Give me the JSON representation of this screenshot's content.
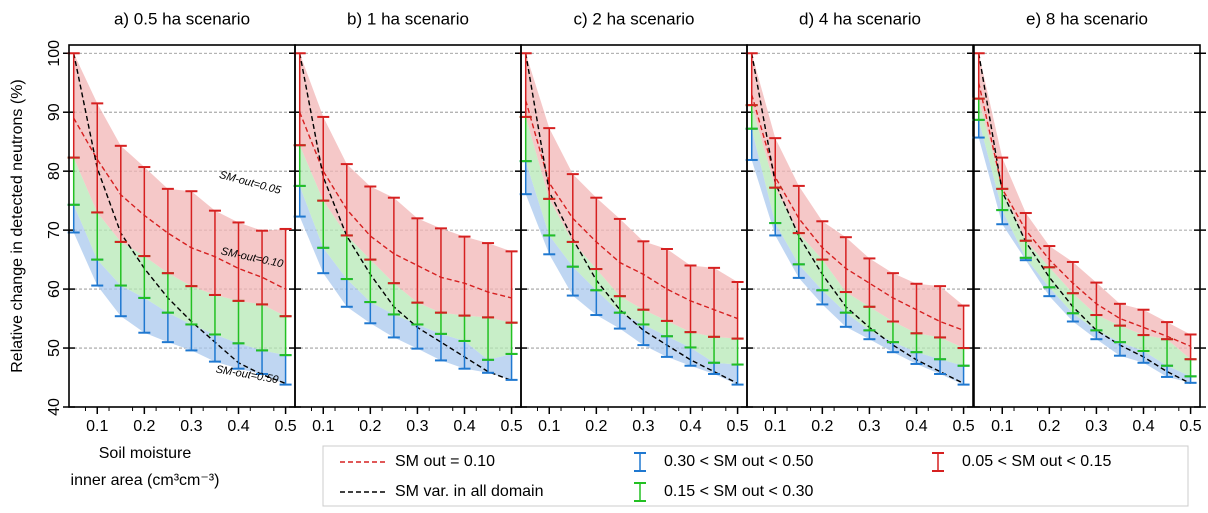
{
  "chart_data": [
    {
      "type": "line",
      "title": "a) 0.5 ha scenario",
      "ylabel": "Relative change in detected neutrons (%)",
      "xlabel": [
        "Soil moisture",
        "inner area (cm³cm⁻³)"
      ],
      "annotations": [
        "SM-out=0.05",
        "SM-out=0.10",
        "SM-out=0.50"
      ],
      "x": [
        0.05,
        0.1,
        0.15,
        0.2,
        0.25,
        0.3,
        0.35,
        0.4,
        0.45,
        0.5
      ],
      "xlim": [
        0.04,
        0.52
      ],
      "xticks": [
        0.1,
        0.2,
        0.3,
        0.4,
        0.5
      ],
      "ylim": [
        40,
        101.4
      ],
      "yticks": [
        40,
        50,
        60,
        70,
        80,
        90,
        100
      ],
      "grid": true,
      "series": [
        {
          "name": "SM out = 0.10",
          "color": "#d62020",
          "values": [
            89,
            82,
            76,
            72.5,
            69.5,
            67,
            65.5,
            63.5,
            62,
            60
          ]
        },
        {
          "name": "SM var. in all domain",
          "color": "#000000",
          "values": [
            100,
            80.5,
            69.5,
            63.5,
            58.5,
            54.5,
            51,
            47.5,
            45.5,
            44
          ]
        }
      ],
      "bands": [
        {
          "name": "0.30 < SM out < 0.50",
          "color": "#1f78d0",
          "fill": "#a9c8ee",
          "low": [
            69.6,
            60.6,
            55.4,
            52.6,
            51,
            49.6,
            47.7,
            46.5,
            45.6,
            43.8
          ],
          "high": [
            74.3,
            65,
            60.6,
            58.5,
            56,
            54,
            52.3,
            50.8,
            49.6,
            48.8
          ]
        },
        {
          "name": "0.15 < SM out < 0.30",
          "color": "#22c022",
          "fill": "#b5e8b5",
          "low": [
            74.3,
            65,
            60.6,
            58.5,
            56,
            54,
            52.3,
            50.8,
            49.6,
            48.8
          ],
          "high": [
            82.3,
            73,
            68,
            65.6,
            62.7,
            60.5,
            59,
            58,
            57.4,
            55.4
          ]
        },
        {
          "name": "0.05 < SM out < 0.15",
          "color": "#d62020",
          "fill": "#f2b5b5",
          "low": [
            82.3,
            73,
            68,
            65.6,
            62.7,
            60.5,
            59,
            58,
            57.4,
            55.4
          ],
          "high": [
            100,
            91.5,
            84.3,
            80.7,
            77,
            76.6,
            73.3,
            71.3,
            69.9,
            70.2
          ]
        }
      ]
    },
    {
      "type": "line",
      "title": "b) 1 ha scenario",
      "x": [
        0.05,
        0.1,
        0.15,
        0.2,
        0.25,
        0.3,
        0.35,
        0.4,
        0.45,
        0.5
      ],
      "xlim": [
        0.04,
        0.52
      ],
      "xticks": [
        0.1,
        0.2,
        0.3,
        0.4,
        0.5
      ],
      "ylim": [
        40,
        101.4
      ],
      "yticks": [
        40,
        50,
        60,
        70,
        80,
        90,
        100
      ],
      "grid": true,
      "series": [
        {
          "name": "SM out = 0.10",
          "color": "#d62020",
          "values": [
            90,
            80,
            73.5,
            69,
            66,
            64,
            62,
            61,
            59.5,
            58.5
          ]
        },
        {
          "name": "SM var. in all domain",
          "color": "#000000",
          "values": [
            100,
            79,
            69,
            62.5,
            57,
            53.5,
            51,
            48.5,
            46,
            44.5
          ]
        }
      ],
      "bands": [
        {
          "name": "0.30 < SM out < 0.50",
          "color": "#1f78d0",
          "fill": "#a9c8ee",
          "low": [
            72.3,
            62.7,
            57,
            54.2,
            51.8,
            49.9,
            47.9,
            46.5,
            45.8,
            44.6
          ],
          "high": [
            77.5,
            67,
            61.7,
            57.8,
            55.7,
            54,
            52.4,
            51.2,
            48,
            49
          ]
        },
        {
          "name": "0.15 < SM out < 0.30",
          "color": "#22c022",
          "fill": "#b5e8b5",
          "low": [
            77.5,
            67,
            61.7,
            57.8,
            55.7,
            54,
            52.4,
            51.2,
            48,
            49
          ],
          "high": [
            84.4,
            75,
            69.1,
            65,
            61,
            57.7,
            56,
            55.5,
            55.2,
            54.3
          ]
        },
        {
          "name": "0.05 < SM out < 0.15",
          "color": "#d62020",
          "fill": "#f2b5b5",
          "low": [
            84.4,
            75,
            69.1,
            65,
            61,
            57.7,
            56,
            55.5,
            55.2,
            54.3
          ],
          "high": [
            100,
            89.2,
            81.2,
            77.4,
            75.5,
            72,
            70.3,
            68.9,
            67.8,
            66.4
          ]
        }
      ]
    },
    {
      "type": "line",
      "title": "c) 2 ha scenario",
      "x": [
        0.05,
        0.1,
        0.15,
        0.2,
        0.25,
        0.3,
        0.35,
        0.4,
        0.45,
        0.5
      ],
      "xlim": [
        0.04,
        0.52
      ],
      "xticks": [
        0.1,
        0.2,
        0.3,
        0.4,
        0.5
      ],
      "ylim": [
        40,
        101.4
      ],
      "yticks": [
        40,
        50,
        60,
        70,
        80,
        90,
        100
      ],
      "grid": true,
      "series": [
        {
          "name": "SM out = 0.10",
          "color": "#d62020",
          "values": [
            92,
            78,
            72,
            68,
            64.5,
            62.5,
            60,
            58,
            56.5,
            55
          ]
        },
        {
          "name": "SM var. in all domain",
          "color": "#000000",
          "values": [
            100,
            76.5,
            68.5,
            61.5,
            56.5,
            53,
            50.5,
            48,
            46,
            44
          ]
        }
      ],
      "bands": [
        {
          "name": "0.30 < SM out < 0.50",
          "color": "#1f78d0",
          "fill": "#a9c8ee",
          "low": [
            76.1,
            65.9,
            58.9,
            55.6,
            53.3,
            50.5,
            48.5,
            47,
            45.6,
            43.8
          ],
          "high": [
            81.7,
            69.1,
            63.8,
            59.8,
            56,
            54,
            52,
            50.1,
            47.5,
            47.2
          ]
        },
        {
          "name": "0.15 < SM out < 0.30",
          "color": "#22c022",
          "fill": "#b5e8b5",
          "low": [
            81.7,
            69.1,
            63.8,
            59.8,
            56,
            54,
            52,
            50.1,
            47.5,
            47.2
          ],
          "high": [
            89.2,
            75.3,
            68,
            63.4,
            58.8,
            56.5,
            54.6,
            52.7,
            51.9,
            51.6
          ]
        },
        {
          "name": "0.05 < SM out < 0.15",
          "color": "#d62020",
          "fill": "#f2b5b5",
          "low": [
            89.2,
            75.3,
            68,
            63.4,
            58.8,
            56.5,
            54.6,
            52.7,
            51.9,
            51.6
          ],
          "high": [
            100,
            87.3,
            79.5,
            75.5,
            71.9,
            68.1,
            66.8,
            64,
            63.6,
            61.2
          ]
        }
      ]
    },
    {
      "type": "line",
      "title": "d) 4 ha scenario",
      "x": [
        0.05,
        0.1,
        0.15,
        0.2,
        0.25,
        0.3,
        0.35,
        0.4,
        0.45,
        0.5
      ],
      "xlim": [
        0.04,
        0.52
      ],
      "xticks": [
        0.1,
        0.2,
        0.3,
        0.4,
        0.5
      ],
      "ylim": [
        40,
        101.4
      ],
      "yticks": [
        40,
        50,
        60,
        70,
        80,
        90,
        100
      ],
      "grid": true,
      "series": [
        {
          "name": "SM out = 0.10",
          "color": "#d62020",
          "values": [
            93,
            79,
            72,
            67,
            63.5,
            61,
            58.5,
            56.5,
            54.5,
            53
          ]
        },
        {
          "name": "SM var. in all domain",
          "color": "#000000",
          "values": [
            100,
            78,
            69,
            62.5,
            57,
            53.5,
            50.5,
            48,
            46,
            44
          ]
        }
      ],
      "bands": [
        {
          "name": "0.30 < SM out < 0.50",
          "color": "#1f78d0",
          "fill": "#a9c8ee",
          "low": [
            81.9,
            69.1,
            61.9,
            57.4,
            53.6,
            51.5,
            49.3,
            47.3,
            45.6,
            43.8
          ],
          "high": [
            87.2,
            71.2,
            64.2,
            59.8,
            56,
            53,
            51,
            49.3,
            48.1,
            47
          ]
        },
        {
          "name": "0.15 < SM out < 0.30",
          "color": "#22c022",
          "fill": "#b5e8b5",
          "low": [
            87.2,
            71.2,
            64.2,
            59.8,
            56,
            53,
            51,
            49.3,
            48.1,
            47
          ],
          "high": [
            91.2,
            77.2,
            69.5,
            65,
            59.5,
            57,
            54.5,
            52.5,
            51.8,
            50
          ]
        },
        {
          "name": "0.05 < SM out < 0.15",
          "color": "#d62020",
          "fill": "#f2b5b5",
          "low": [
            91.2,
            77.2,
            69.5,
            65,
            59.5,
            57,
            54.5,
            52.5,
            51.8,
            50
          ],
          "high": [
            100,
            85.6,
            77.5,
            71.5,
            68.8,
            65.2,
            62.7,
            60.9,
            60.5,
            57.2
          ]
        }
      ]
    },
    {
      "type": "line",
      "title": "e) 8 ha scenario",
      "x": [
        0.05,
        0.1,
        0.15,
        0.2,
        0.25,
        0.3,
        0.35,
        0.4,
        0.45,
        0.5
      ],
      "xlim": [
        0.04,
        0.52
      ],
      "xticks": [
        0.1,
        0.2,
        0.3,
        0.4,
        0.5
      ],
      "ylim": [
        40,
        101.4
      ],
      "yticks": [
        40,
        50,
        60,
        70,
        80,
        90,
        100
      ],
      "grid": true,
      "series": [
        {
          "name": "SM out = 0.10",
          "color": "#d62020",
          "values": [
            95,
            77,
            70,
            65,
            61,
            57.5,
            55,
            53.5,
            52,
            50.3
          ]
        },
        {
          "name": "SM var. in all domain",
          "color": "#000000",
          "values": [
            100,
            76.5,
            68,
            62,
            57,
            53,
            50.5,
            48.5,
            46,
            44
          ]
        }
      ],
      "bands": [
        {
          "name": "0.30 < SM out < 0.50",
          "color": "#1f78d0",
          "fill": "#a9c8ee",
          "low": [
            85.7,
            71,
            64.9,
            58.8,
            54.5,
            51.5,
            48.7,
            47.5,
            45.1,
            44.1
          ],
          "high": [
            88.7,
            73.4,
            65.3,
            60.3,
            55.9,
            53,
            51,
            49.5,
            47,
            45.2
          ]
        },
        {
          "name": "0.15 < SM out < 0.30",
          "color": "#22c022",
          "fill": "#b5e8b5",
          "low": [
            88.7,
            73.4,
            65.3,
            60.3,
            55.9,
            53,
            51,
            49.5,
            47,
            45.2
          ],
          "high": [
            92.3,
            77,
            68.2,
            63.7,
            59.3,
            55.6,
            53.8,
            52.2,
            51.5,
            48.1
          ]
        },
        {
          "name": "0.05 < SM out < 0.15",
          "color": "#d62020",
          "fill": "#f2b5b5",
          "low": [
            92.3,
            77,
            68.2,
            63.7,
            59.3,
            55.6,
            53.8,
            52.2,
            51.5,
            48.1
          ],
          "high": [
            100,
            82.3,
            72.9,
            67.3,
            64.6,
            61.1,
            57.5,
            56.5,
            54.4,
            52.3
          ]
        }
      ]
    }
  ]
}
